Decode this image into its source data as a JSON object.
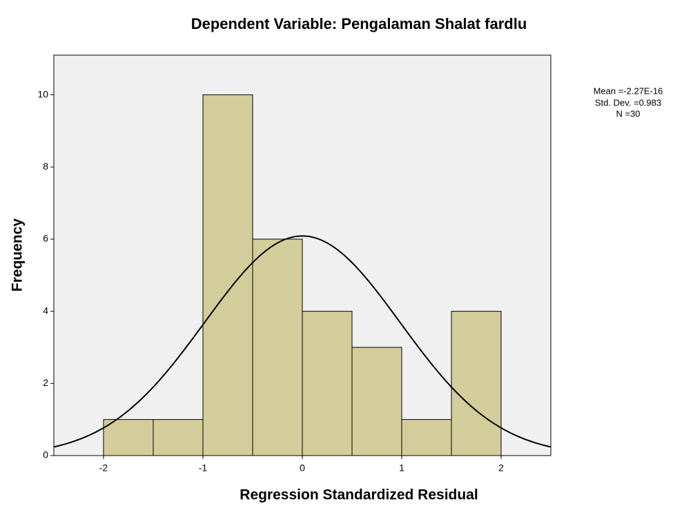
{
  "chart_data": {
    "type": "histogram",
    "title": "Dependent Variable: Pengalaman Shalat fardlu",
    "x_label": "Regression Standardized Residual",
    "y_label": "Frequency",
    "bins": [
      -2,
      -1.5,
      -1,
      -0.5,
      0,
      0.5,
      1,
      1.5,
      2
    ],
    "values": [
      1,
      1,
      10,
      6,
      4,
      3,
      1,
      4
    ],
    "color": "#d3cd9b",
    "xlim": [
      -2.5,
      2.5
    ],
    "ylim": [
      0,
      11.1
    ],
    "xticks": [
      -2,
      -1,
      0,
      1,
      2
    ],
    "yticks": [
      0,
      2,
      4,
      6,
      8,
      10
    ],
    "grid": false,
    "normal_curve": {
      "mean": {
        "value": -2.27e-16,
        "label": "Mean =-2.27E-16"
      },
      "std_dev": {
        "value": 0.983,
        "label": "Std. Dev. =0.983"
      },
      "n": {
        "value": 30,
        "label": "N =30"
      }
    }
  }
}
